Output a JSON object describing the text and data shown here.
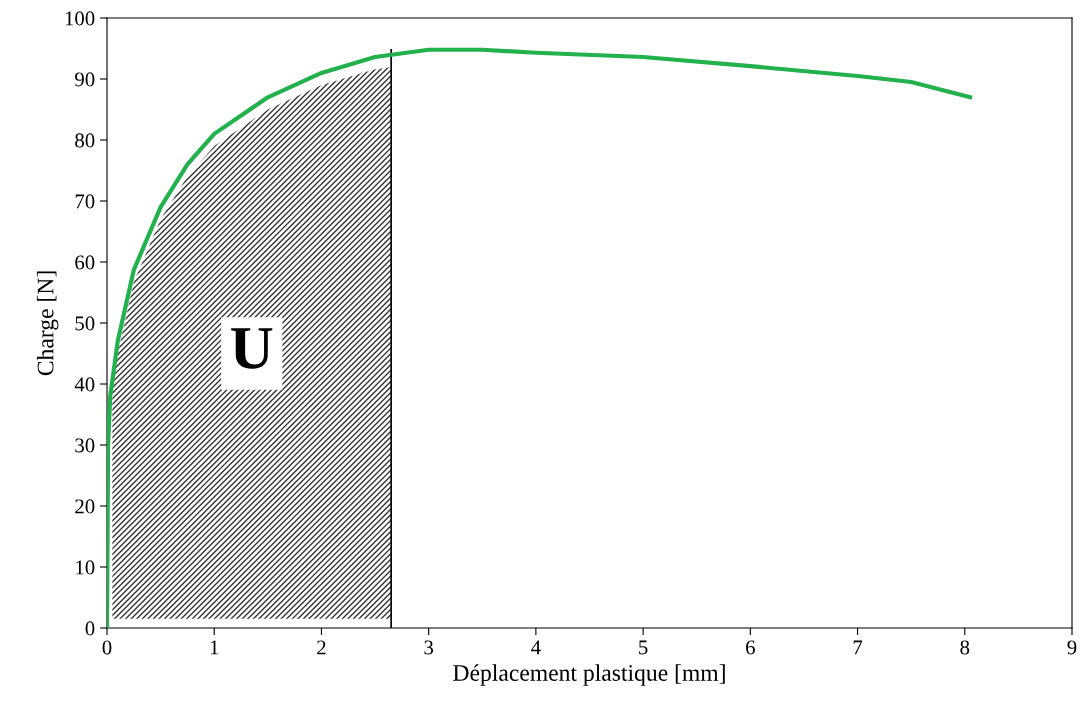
{
  "chart_data": {
    "type": "line",
    "xlabel": "Déplacement plastique [mm]",
    "ylabel": "Charge [N]",
    "xlim": [
      0,
      9
    ],
    "xticks": [
      0,
      1,
      2,
      3,
      4,
      5,
      6,
      7,
      8,
      9
    ],
    "ylim": [
      0,
      100
    ],
    "yticks": [
      0,
      10,
      20,
      30,
      40,
      50,
      60,
      70,
      80,
      90,
      100
    ],
    "grid": false,
    "legend": false,
    "marker": "none",
    "line_style": "solid",
    "series": [
      {
        "color": "#22b14c",
        "x": [
          0,
          0.01,
          0.03,
          0.1,
          0.25,
          0.5,
          0.75,
          1,
          1.5,
          2,
          2.5,
          3,
          3.5,
          4,
          5,
          6,
          7,
          7.5,
          8.05
        ],
        "values": [
          0,
          30,
          38,
          47,
          58.7,
          69,
          76,
          81,
          87,
          91,
          93.6,
          94.8,
          94.8,
          94.3,
          93.6,
          92.1,
          90.5,
          89.5,
          87
        ]
      }
    ],
    "ref_lines": [
      {
        "axis": "x",
        "value": 2.65,
        "label": null,
        "color": "#000000"
      }
    ],
    "bands": [
      {
        "axis": "x",
        "from": 0.05,
        "to": 2.65,
        "label": "U",
        "color": "#333333"
      }
    ]
  }
}
